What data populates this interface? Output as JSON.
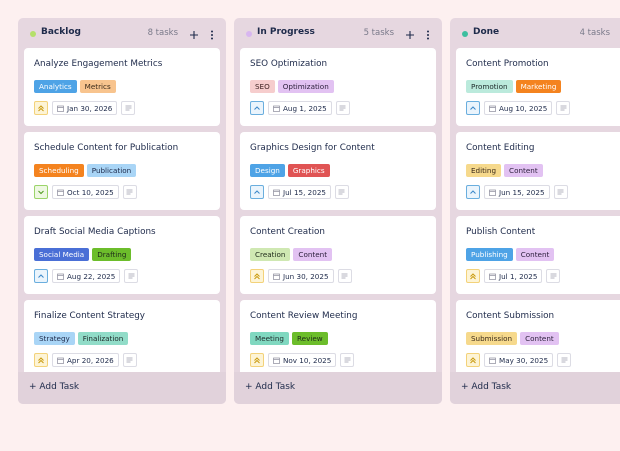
{
  "board": {
    "columns": [
      {
        "title": "Backlog",
        "count": "8 tasks",
        "dot": "#b5e06a",
        "add_label": "+ Add Task",
        "cards": [
          {
            "title": "Analyze Engagement Metrics",
            "priority": "high",
            "date": "Jan 30, 2026",
            "tags": [
              {
                "label": "Analytics",
                "color": "#4ea3e6",
                "text": "#ffffff"
              },
              {
                "label": "Metrics",
                "color": "#f8c48e",
                "text": "#3a2a1a"
              }
            ]
          },
          {
            "title": "Schedule Content for Publication",
            "priority": "low",
            "date": "Oct 10, 2025",
            "tags": [
              {
                "label": "Scheduling",
                "color": "#f4831f",
                "text": "#ffffff"
              },
              {
                "label": "Publication",
                "color": "#a9d5f6",
                "text": "#1e2a4a"
              }
            ]
          },
          {
            "title": "Draft Social Media Captions",
            "priority": "medium",
            "date": "Aug 22, 2025",
            "tags": [
              {
                "label": "Social Media",
                "color": "#4a6fd6",
                "text": "#ffffff"
              },
              {
                "label": "Drafting",
                "color": "#6cbd2b",
                "text": "#1e2a1a"
              }
            ]
          },
          {
            "title": "Finalize Content Strategy",
            "priority": "high",
            "date": "Apr 20, 2026",
            "tags": [
              {
                "label": "Strategy",
                "color": "#a9d5f6",
                "text": "#1e2a4a"
              },
              {
                "label": "Finalization",
                "color": "#91dcc8",
                "text": "#1e2a2a"
              }
            ]
          }
        ]
      },
      {
        "title": "In Progress",
        "count": "5 tasks",
        "dot": "#d8b6f0",
        "add_label": "+ Add Task",
        "cards": [
          {
            "title": "SEO Optimization",
            "priority": "medium",
            "date": "Aug 1, 2025",
            "tags": [
              {
                "label": "SEO",
                "color": "#f6cdcd",
                "text": "#3a1e1e"
              },
              {
                "label": "Optimization",
                "color": "#e2c2f2",
                "text": "#2a1e3a"
              }
            ]
          },
          {
            "title": "Graphics Design for Content",
            "priority": "medium",
            "date": "Jul 15, 2025",
            "tags": [
              {
                "label": "Design",
                "color": "#4ea3e6",
                "text": "#ffffff"
              },
              {
                "label": "Graphics",
                "color": "#e05454",
                "text": "#ffffff"
              }
            ]
          },
          {
            "title": "Content Creation",
            "priority": "high",
            "date": "Jun 30, 2025",
            "tags": [
              {
                "label": "Creation",
                "color": "#cfe8b2",
                "text": "#1e2a1a"
              },
              {
                "label": "Content",
                "color": "#e2c2f2",
                "text": "#2a1e3a"
              }
            ]
          },
          {
            "title": "Content Review Meeting",
            "priority": "high",
            "date": "Nov 10, 2025",
            "tags": [
              {
                "label": "Meeting",
                "color": "#80d8c0",
                "text": "#1e2a2a"
              },
              {
                "label": "Review",
                "color": "#6cbd2b",
                "text": "#1e2a1a"
              }
            ]
          }
        ]
      },
      {
        "title": "Done",
        "count": "4 tasks",
        "dot": "#3cbf9f",
        "add_label": "+ Add Task",
        "cards": [
          {
            "title": "Content Promotion",
            "priority": "medium",
            "date": "Aug 10, 2025",
            "tags": [
              {
                "label": "Promotion",
                "color": "#bbeadc",
                "text": "#1e2a2a"
              },
              {
                "label": "Marketing",
                "color": "#f4831f",
                "text": "#ffffff"
              }
            ]
          },
          {
            "title": "Content Editing",
            "priority": "medium",
            "date": "Jun 15, 2025",
            "tags": [
              {
                "label": "Editing",
                "color": "#f6d98c",
                "text": "#3a2a1a"
              },
              {
                "label": "Content",
                "color": "#e2c2f2",
                "text": "#2a1e3a"
              }
            ]
          },
          {
            "title": "Publish Content",
            "priority": "high",
            "date": "Jul 1, 2025",
            "tags": [
              {
                "label": "Publishing",
                "color": "#4ea3e6",
                "text": "#ffffff"
              },
              {
                "label": "Content",
                "color": "#e2c2f2",
                "text": "#2a1e3a"
              }
            ]
          },
          {
            "title": "Content Submission",
            "priority": "high",
            "date": "May 30, 2025",
            "tags": [
              {
                "label": "Submission",
                "color": "#f6d98c",
                "text": "#3a2a1a"
              },
              {
                "label": "Content",
                "color": "#e2c2f2",
                "text": "#2a1e3a"
              }
            ]
          }
        ]
      }
    ]
  }
}
